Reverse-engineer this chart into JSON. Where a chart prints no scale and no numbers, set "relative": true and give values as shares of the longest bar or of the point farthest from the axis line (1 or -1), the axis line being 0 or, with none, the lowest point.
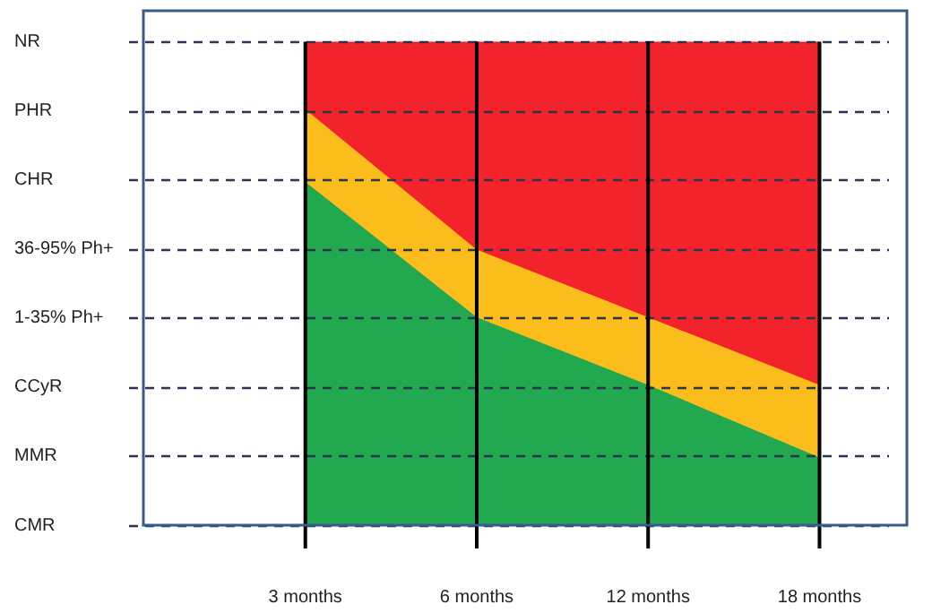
{
  "chart_data": {
    "type": "area",
    "relative": true,
    "categories": [
      "3 months",
      "6 months",
      "12 months",
      "18 months"
    ],
    "series": [
      {
        "color": "#22a94f",
        "values": [
          0.71,
          0.43,
          0.29,
          0.14
        ]
      },
      {
        "color": "#fbbd1c",
        "values": [
          0.86,
          0.57,
          0.43,
          0.29
        ]
      },
      {
        "color": "#f2232a",
        "values": [
          1,
          1,
          1,
          1
        ]
      }
    ],
    "annotations": [
      "CMR",
      "MMR",
      "CCyR",
      "1-35% Ph+",
      "36-95% Ph+",
      "CHR",
      "PHR",
      "NR"
    ],
    "grid": true,
    "legend": false
  }
}
